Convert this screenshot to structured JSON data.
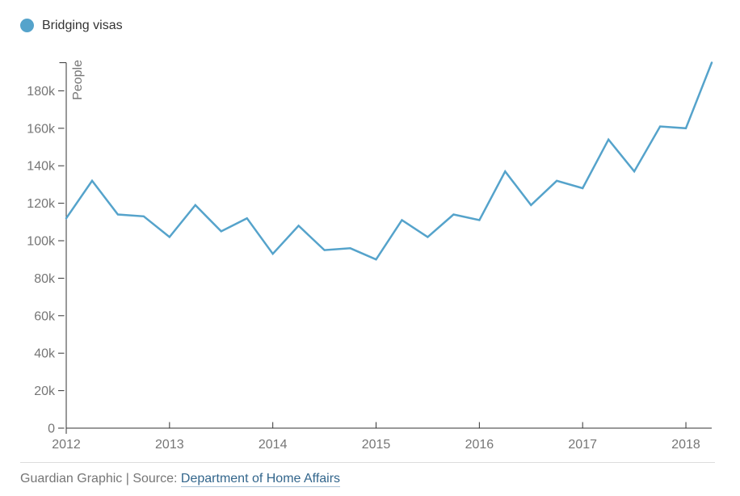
{
  "legend": {
    "label": "Bridging visas",
    "dot_color": "#55a3cb"
  },
  "chart_data": {
    "type": "line",
    "title": "",
    "ylabel": "People",
    "xlabel": "",
    "values_unit": "thousands of people",
    "x": [
      "2012 Q1",
      "2012 Q2",
      "2012 Q3",
      "2012 Q4",
      "2013 Q1",
      "2013 Q2",
      "2013 Q3",
      "2013 Q4",
      "2014 Q1",
      "2014 Q2",
      "2014 Q3",
      "2014 Q4",
      "2015 Q1",
      "2015 Q2",
      "2015 Q3",
      "2015 Q4",
      "2016 Q1",
      "2016 Q2",
      "2016 Q3",
      "2016 Q4",
      "2017 Q1",
      "2017 Q2",
      "2017 Q3",
      "2017 Q4",
      "2018 Q1",
      "2018 Q2"
    ],
    "series": [
      {
        "name": "Bridging visas",
        "color": "#55a3cb",
        "values": [
          112,
          132,
          114,
          113,
          102,
          119,
          105,
          112,
          93,
          108,
          95,
          96,
          90,
          111,
          102,
          114,
          111,
          137,
          119,
          132,
          128,
          154,
          137,
          161,
          160,
          195
        ]
      }
    ],
    "y_tick_labels": [
      "0",
      "20k",
      "40k",
      "60k",
      "80k",
      "100k",
      "120k",
      "140k",
      "160k",
      "180k"
    ],
    "y_tick_values": [
      0,
      20,
      40,
      60,
      80,
      100,
      120,
      140,
      160,
      180
    ],
    "x_tick_labels": [
      "2012",
      "2013",
      "2014",
      "2015",
      "2016",
      "2017",
      "2018"
    ],
    "ylim": [
      0,
      195
    ],
    "grid": false,
    "legend_position": "top-left"
  },
  "footer": {
    "credit": "Guardian Graphic | Source: ",
    "source_link": "Department of Home Affairs"
  },
  "colors": {
    "line": "#55a3cb",
    "axis": "#333333",
    "tick_label": "#767676",
    "legend_text": "#333333",
    "link": "#33668c",
    "divider": "#dcdcdc"
  }
}
